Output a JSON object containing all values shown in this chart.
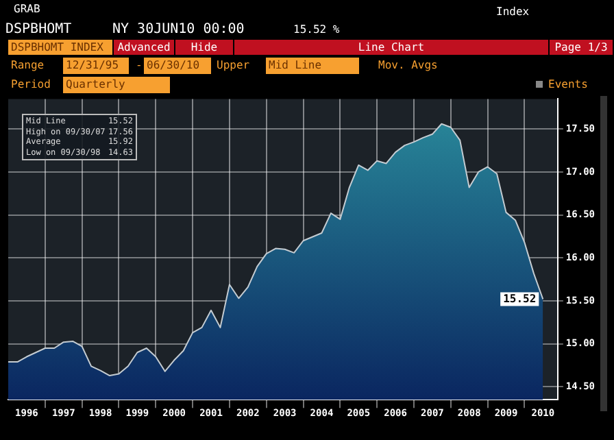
{
  "chart_data": {
    "type": "area",
    "title": "DSPBHOMT",
    "subtitle": "NY 30JUN10 00:00",
    "annotations": [
      "GRAB",
      "Index",
      "15.52 %",
      "DSPBHOMT INDEX",
      "Advanced",
      "Hide",
      "Line Chart",
      "Page 1/3",
      "Range",
      "12/31/95",
      "-",
      "06/30/10",
      "Upper",
      "Mid Line",
      "Mov. Avgs",
      "Period",
      "Quarterly",
      "Events",
      "Mid Line",
      "15.52",
      "High on 09/30/07",
      "17.56",
      "Average",
      "15.92",
      "Low on 09/30/98",
      "14.63",
      {
        "text": "15.52",
        "x": 2010.5,
        "y": 15.52
      }
    ],
    "x": [
      1996,
      1996.25,
      1996.5,
      1996.75,
      1997,
      1997.25,
      1997.5,
      1997.75,
      1998,
      1998.25,
      1998.5,
      1998.75,
      1999,
      1999.25,
      1999.5,
      1999.75,
      2000,
      2000.25,
      2000.5,
      2000.75,
      2001,
      2001.25,
      2001.5,
      2001.75,
      2002,
      2002.25,
      2002.5,
      2002.75,
      2003,
      2003.25,
      2003.5,
      2003.75,
      2004,
      2004.5,
      2004.75,
      2005,
      2005.25,
      2005.5,
      2005.75,
      2006,
      2006.25,
      2006.5,
      2006.75,
      2007,
      2007.25,
      2007.5,
      2007.75,
      2008,
      2008.25,
      2008.5,
      2008.75,
      2009,
      2009.25,
      2009.5,
      2009.75,
      2010,
      2010.25,
      2010.5
    ],
    "series": [
      {
        "color": "#c4ccd2",
        "values": [
          14.79,
          14.79,
          14.85,
          14.9,
          14.95,
          14.95,
          15.02,
          15.03,
          14.97,
          14.74,
          14.69,
          14.63,
          14.65,
          14.74,
          14.9,
          14.95,
          14.85,
          14.68,
          14.81,
          14.92,
          15.13,
          15.19,
          15.39,
          15.19,
          15.69,
          15.53,
          15.66,
          15.9,
          16.05,
          16.11,
          16.1,
          16.06,
          16.2,
          16.29,
          16.52,
          16.45,
          16.82,
          17.08,
          17.02,
          17.13,
          17.1,
          17.23,
          17.31,
          17.35,
          17.4,
          17.44,
          17.56,
          17.52,
          17.37,
          16.82,
          17.0,
          17.06,
          16.98,
          16.53,
          16.44,
          16.18,
          15.82,
          15.52
        ]
      }
    ],
    "xlim": [
      1996,
      2010.9
    ],
    "xticks": [
      {
        "value": 1996.5,
        "label": "1996"
      },
      {
        "value": 1997,
        "label": null
      },
      {
        "value": 1997.5,
        "label": "1997"
      },
      {
        "value": 1998,
        "label": null
      },
      {
        "value": 1998.5,
        "label": "1998"
      },
      {
        "value": 1999,
        "label": null
      },
      {
        "value": 1999.5,
        "label": "1999"
      },
      {
        "value": 2000,
        "label": null
      },
      {
        "value": 2000.5,
        "label": "2000"
      },
      {
        "value": 2001,
        "label": null
      },
      {
        "value": 2001.5,
        "label": "2001"
      },
      {
        "value": 2002,
        "label": null
      },
      {
        "value": 2002.5,
        "label": "2002"
      },
      {
        "value": 2003,
        "label": null
      },
      {
        "value": 2003.5,
        "label": "2003"
      },
      {
        "value": 2004,
        "label": null
      },
      {
        "value": 2004.5,
        "label": "2004"
      },
      {
        "value": 2005,
        "label": null
      },
      {
        "value": 2005.5,
        "label": "2005"
      },
      {
        "value": 2006,
        "label": null
      },
      {
        "value": 2006.5,
        "label": "2006"
      },
      {
        "value": 2007,
        "label": null
      },
      {
        "value": 2007.5,
        "label": "2007"
      },
      {
        "value": 2008,
        "label": null
      },
      {
        "value": 2008.5,
        "label": "2008"
      },
      {
        "value": 2009,
        "label": null
      },
      {
        "value": 2009.5,
        "label": "2009"
      },
      {
        "value": 2010,
        "label": null
      },
      {
        "value": 2010.5,
        "label": "2010"
      }
    ],
    "ylim": [
      14.35,
      17.85
    ],
    "yticks": [
      {
        "value": 14.5,
        "label": "14.50"
      },
      {
        "value": 15,
        "label": "15.00"
      },
      {
        "value": 15.5,
        "label": "15.50"
      },
      {
        "value": 16,
        "label": "16.00"
      },
      {
        "value": 16.5,
        "label": "16.50"
      },
      {
        "value": 17,
        "label": "17.00"
      },
      {
        "value": 17.5,
        "label": "17.50"
      }
    ],
    "grid": true
  }
}
